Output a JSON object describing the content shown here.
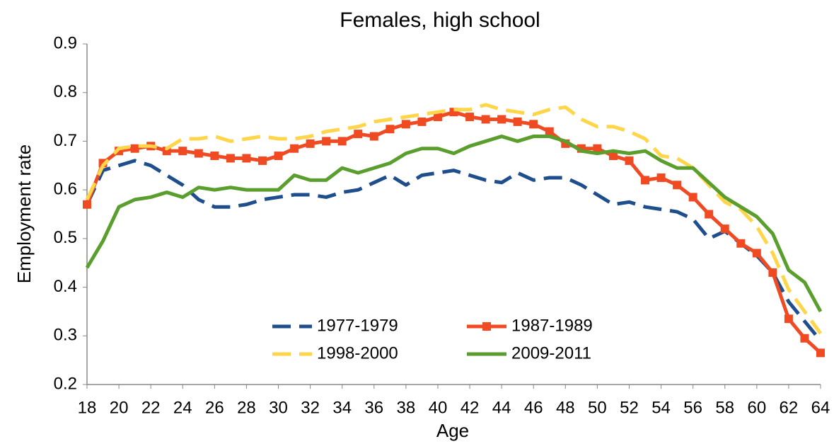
{
  "chart_data": {
    "type": "line",
    "title": "Females, high school",
    "x_label": "Age",
    "y_label": "Employment rate",
    "x": [
      18,
      19,
      20,
      21,
      22,
      23,
      24,
      25,
      26,
      27,
      28,
      29,
      30,
      31,
      32,
      33,
      34,
      35,
      36,
      37,
      38,
      39,
      40,
      41,
      42,
      43,
      44,
      45,
      46,
      47,
      48,
      49,
      50,
      51,
      52,
      53,
      54,
      55,
      56,
      57,
      58,
      59,
      60,
      61,
      62,
      63,
      64
    ],
    "xlim": [
      18,
      64
    ],
    "xticks": [
      18,
      20,
      22,
      24,
      26,
      28,
      30,
      32,
      34,
      36,
      38,
      40,
      42,
      44,
      46,
      48,
      50,
      52,
      54,
      56,
      58,
      60,
      62,
      64
    ],
    "ylim": [
      0.2,
      0.9
    ],
    "yticks": [
      0.2,
      0.3,
      0.4,
      0.5,
      0.6,
      0.7,
      0.8,
      0.9
    ],
    "grid": false,
    "series": [
      {
        "name": "1977-1979",
        "color": "#1f4e8c",
        "dash": true,
        "values": [
          0.57,
          0.64,
          0.65,
          0.66,
          0.65,
          0.63,
          0.61,
          0.58,
          0.565,
          0.565,
          0.57,
          0.58,
          0.585,
          0.59,
          0.59,
          0.585,
          0.595,
          0.6,
          0.615,
          0.63,
          0.61,
          0.63,
          0.635,
          0.64,
          0.63,
          0.62,
          0.615,
          0.635,
          0.62,
          0.625,
          0.625,
          0.61,
          0.59,
          0.57,
          0.575,
          0.565,
          0.56,
          0.555,
          0.54,
          0.5,
          0.515,
          0.49,
          0.465,
          0.43,
          0.37,
          0.33,
          0.29
        ]
      },
      {
        "name": "1987-1989",
        "color": "#f04a23",
        "marker": "square",
        "values": [
          0.57,
          0.655,
          0.68,
          0.685,
          0.69,
          0.68,
          0.68,
          0.675,
          0.67,
          0.665,
          0.665,
          0.66,
          0.67,
          0.685,
          0.695,
          0.7,
          0.7,
          0.715,
          0.71,
          0.725,
          0.735,
          0.74,
          0.75,
          0.76,
          0.75,
          0.745,
          0.745,
          0.74,
          0.735,
          0.72,
          0.695,
          0.685,
          0.685,
          0.67,
          0.66,
          0.62,
          0.625,
          0.61,
          0.585,
          0.55,
          0.52,
          0.49,
          0.47,
          0.43,
          0.335,
          0.295,
          0.265
        ]
      },
      {
        "name": "1998-2000",
        "color": "#ffd54a",
        "dash": true,
        "values": [
          0.58,
          0.65,
          0.685,
          0.69,
          0.69,
          0.685,
          0.705,
          0.705,
          0.71,
          0.7,
          0.705,
          0.71,
          0.705,
          0.705,
          0.71,
          0.72,
          0.725,
          0.73,
          0.74,
          0.745,
          0.75,
          0.755,
          0.76,
          0.765,
          0.765,
          0.775,
          0.765,
          0.76,
          0.755,
          0.765,
          0.77,
          0.745,
          0.73,
          0.73,
          0.72,
          0.705,
          0.67,
          0.665,
          0.645,
          0.61,
          0.575,
          0.56,
          0.525,
          0.47,
          0.395,
          0.35,
          0.305
        ]
      },
      {
        "name": "2009-2011",
        "color": "#5a9e2d",
        "values": [
          0.44,
          0.495,
          0.565,
          0.58,
          0.585,
          0.595,
          0.585,
          0.605,
          0.6,
          0.605,
          0.6,
          0.6,
          0.6,
          0.63,
          0.62,
          0.62,
          0.645,
          0.635,
          0.645,
          0.655,
          0.675,
          0.685,
          0.685,
          0.675,
          0.69,
          0.7,
          0.71,
          0.7,
          0.71,
          0.71,
          0.7,
          0.68,
          0.675,
          0.68,
          0.675,
          0.68,
          0.66,
          0.645,
          0.645,
          0.615,
          0.585,
          0.565,
          0.545,
          0.51,
          0.435,
          0.41,
          0.35
        ]
      }
    ]
  }
}
